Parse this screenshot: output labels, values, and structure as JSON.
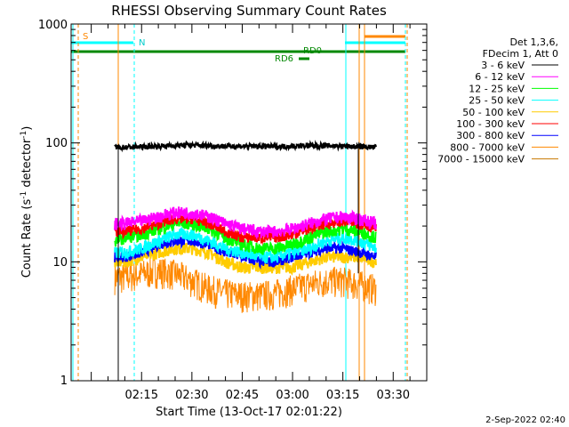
{
  "chart_data": {
    "type": "line",
    "title": "RHESSI Observing Summary Count Rates",
    "xlabel": "Start Time (13-Oct-17 02:01:22)",
    "ylabel_main": "Count Rate (s",
    "ylabel_sup1": "-1",
    "ylabel_mid": " detector",
    "ylabel_sup2": "-1",
    "ylabel_end": ")",
    "yscale": "log",
    "ylim": [
      1,
      1000
    ],
    "xlim_minutes": [
      -6,
      100
    ],
    "x_ticks": [
      {
        "min": 15,
        "label": "02:15"
      },
      {
        "min": 30,
        "label": "02:30"
      },
      {
        "min": 45,
        "label": "02:45"
      },
      {
        "min": 60,
        "label": "03:00"
      },
      {
        "min": 75,
        "label": "03:15"
      },
      {
        "min": 90,
        "label": "03:30"
      }
    ],
    "y_ticks": [
      {
        "value": 1,
        "label": "1"
      },
      {
        "value": 10,
        "label": "10"
      },
      {
        "value": 100,
        "label": "100"
      },
      {
        "value": 1000,
        "label": "1000"
      }
    ],
    "legend_header": [
      "Det 1,3,6,",
      "FDecim 1, Att 0"
    ],
    "series": [
      {
        "name": "3 - 6 keV",
        "color": "#000000",
        "x": [
          7,
          10,
          15,
          20,
          25,
          30,
          35,
          40,
          45,
          50,
          55,
          60,
          65,
          70,
          75,
          80,
          85
        ],
        "y": [
          92,
          92,
          93,
          94,
          95,
          96,
          95,
          94,
          94,
          94,
          93,
          94,
          95,
          95,
          94,
          93,
          92
        ]
      },
      {
        "name": "6 - 12 keV",
        "color": "#ff00ff",
        "x": [
          7,
          10,
          15,
          20,
          25,
          30,
          35,
          40,
          45,
          50,
          55,
          60,
          65,
          70,
          75,
          80,
          85
        ],
        "y": [
          21,
          21,
          22,
          24,
          26,
          26,
          24,
          21,
          19,
          18,
          18,
          19,
          21,
          23,
          24,
          23,
          21
        ]
      },
      {
        "name": "12 - 25 keV",
        "color": "#00ff00",
        "x": [
          7,
          10,
          15,
          20,
          25,
          30,
          35,
          40,
          45,
          50,
          55,
          60,
          65,
          70,
          75,
          80,
          85
        ],
        "y": [
          15,
          16,
          17,
          19,
          21,
          21,
          19,
          16,
          14,
          13,
          13,
          14,
          16,
          18,
          19,
          18,
          16
        ]
      },
      {
        "name": "25 - 50 keV",
        "color": "#00ffff",
        "x": [
          7,
          10,
          15,
          20,
          25,
          30,
          35,
          40,
          45,
          50,
          55,
          60,
          65,
          70,
          75,
          80,
          85
        ],
        "y": [
          12,
          12,
          13,
          15,
          17,
          17,
          15,
          13,
          12,
          11,
          11,
          12,
          13,
          15,
          16,
          15,
          13
        ]
      },
      {
        "name": "50 - 100 keV",
        "color": "#ffcc00",
        "x": [
          7,
          10,
          15,
          20,
          25,
          30,
          35,
          40,
          45,
          50,
          55,
          60,
          65,
          70,
          75,
          80,
          85
        ],
        "y": [
          10,
          10,
          11,
          12,
          13,
          13,
          12,
          10,
          9,
          9,
          9,
          9,
          10,
          11,
          11,
          11,
          10
        ]
      },
      {
        "name": "100 - 300 keV",
        "color": "#ff0000",
        "x": [
          7,
          10,
          15,
          20,
          25,
          30,
          35,
          40,
          45,
          50,
          55,
          60,
          65,
          70,
          75,
          80,
          85
        ],
        "y": [
          18,
          18,
          19,
          21,
          23,
          23,
          21,
          18,
          16,
          16,
          16,
          17,
          19,
          21,
          22,
          21,
          19
        ]
      },
      {
        "name": "300 - 800 keV",
        "color": "#0000ff",
        "x": [
          7,
          10,
          15,
          20,
          25,
          30,
          35,
          40,
          45,
          50,
          55,
          60,
          65,
          70,
          75,
          80,
          85
        ],
        "y": [
          11,
          11,
          12,
          14,
          15,
          15,
          14,
          12,
          11,
          10,
          10,
          11,
          12,
          13,
          13,
          12,
          11
        ]
      },
      {
        "name": "800 - 7000 keV",
        "color": "#ff8800",
        "x": [
          7,
          10,
          15,
          20,
          25,
          30,
          35,
          40,
          45,
          50,
          55,
          60,
          65,
          70,
          75,
          80,
          85
        ],
        "y": [
          7.5,
          7.5,
          8,
          8.5,
          8,
          7,
          6,
          5.5,
          5.3,
          5.3,
          5.5,
          6,
          6.5,
          7,
          7,
          6.5,
          6
        ]
      },
      {
        "name": "7000 - 15000 keV",
        "color": "#c87800",
        "x": [],
        "y": []
      }
    ],
    "annotations": [
      {
        "text": "S",
        "color": "#ff8800"
      },
      {
        "text": "N",
        "color": "#00ffff"
      },
      {
        "text": "RD0",
        "color": "#008800"
      },
      {
        "text": "RD6",
        "color": "#008800"
      }
    ],
    "footer": "2-Sep-2022 02:40"
  }
}
